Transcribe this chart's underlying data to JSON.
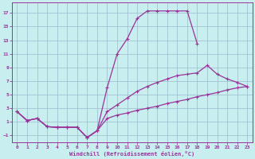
{
  "xlabel": "Windchill (Refroidissement éolien,°C)",
  "bg_color": "#c8eef0",
  "line_color": "#993399",
  "grid_color": "#99bbcc",
  "xlim": [
    -0.5,
    23.5
  ],
  "ylim": [
    -2.0,
    18.5
  ],
  "xticks": [
    0,
    1,
    2,
    3,
    4,
    5,
    6,
    7,
    8,
    9,
    10,
    11,
    12,
    13,
    14,
    15,
    16,
    17,
    18,
    19,
    20,
    21,
    22,
    23
  ],
  "yticks": [
    -1,
    1,
    3,
    5,
    7,
    9,
    11,
    13,
    15,
    17
  ],
  "curve1_x": [
    0,
    1,
    2,
    3,
    4,
    5,
    6,
    7,
    8,
    9,
    10,
    11,
    12,
    13,
    14,
    15,
    16,
    17,
    18
  ],
  "curve1_y": [
    2.5,
    1.2,
    1.5,
    0.3,
    0.2,
    0.2,
    0.2,
    -1.3,
    -0.3,
    6.0,
    11.0,
    13.2,
    16.2,
    17.3,
    17.3,
    17.3,
    17.3,
    17.3,
    12.5
  ],
  "curve2_x": [
    0,
    1,
    2,
    3,
    4,
    5,
    6,
    7,
    8,
    9,
    10,
    11,
    12,
    13,
    14,
    15,
    16,
    17,
    18,
    19,
    20,
    21,
    22,
    23
  ],
  "curve2_y": [
    2.5,
    1.2,
    1.5,
    0.3,
    0.2,
    0.2,
    0.2,
    -1.3,
    -0.3,
    2.5,
    3.5,
    4.5,
    5.5,
    6.2,
    6.8,
    7.3,
    7.8,
    8.0,
    8.2,
    9.3,
    8.0,
    7.3,
    6.8,
    6.2
  ],
  "curve3_x": [
    0,
    1,
    2,
    3,
    4,
    5,
    6,
    7,
    8,
    9,
    10,
    11,
    12,
    13,
    14,
    15,
    16,
    17,
    18,
    19,
    20,
    21,
    22,
    23
  ],
  "curve3_y": [
    2.5,
    1.2,
    1.5,
    0.3,
    0.2,
    0.2,
    0.2,
    -1.3,
    -0.3,
    1.5,
    2.0,
    2.3,
    2.7,
    3.0,
    3.3,
    3.7,
    4.0,
    4.3,
    4.7,
    5.0,
    5.3,
    5.7,
    6.0,
    6.2
  ]
}
